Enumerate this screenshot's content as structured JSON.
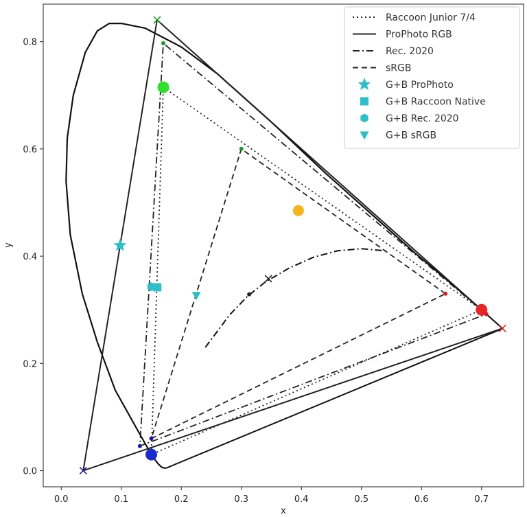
{
  "chart_data": {
    "type": "scatter",
    "xlabel": "x",
    "ylabel": "y",
    "xlim": [
      -0.03,
      0.77
    ],
    "ylim": [
      -0.03,
      0.87
    ],
    "xticks": [
      0.0,
      0.1,
      0.2,
      0.3,
      0.4,
      0.5,
      0.6,
      0.7
    ],
    "yticks": [
      0.0,
      0.2,
      0.4,
      0.6,
      0.8
    ],
    "xtick_labels": [
      "0.0",
      "0.1",
      "0.2",
      "0.3",
      "0.4",
      "0.5",
      "0.6",
      "0.7"
    ],
    "ytick_labels": [
      "0.0",
      "0.2",
      "0.4",
      "0.6",
      "0.8"
    ],
    "grid": false,
    "legend_position": "top-right",
    "spectral_locus": [
      [
        0.175,
        0.005
      ],
      [
        0.172,
        0.005
      ],
      [
        0.168,
        0.006
      ],
      [
        0.162,
        0.012
      ],
      [
        0.153,
        0.025
      ],
      [
        0.14,
        0.05
      ],
      [
        0.12,
        0.09
      ],
      [
        0.09,
        0.15
      ],
      [
        0.06,
        0.24
      ],
      [
        0.035,
        0.33
      ],
      [
        0.015,
        0.44
      ],
      [
        0.008,
        0.54
      ],
      [
        0.01,
        0.62
      ],
      [
        0.02,
        0.7
      ],
      [
        0.04,
        0.78
      ],
      [
        0.06,
        0.82
      ],
      [
        0.08,
        0.834
      ],
      [
        0.1,
        0.834
      ],
      [
        0.14,
        0.825
      ],
      [
        0.2,
        0.79
      ],
      [
        0.26,
        0.74
      ],
      [
        0.35,
        0.65
      ],
      [
        0.44,
        0.555
      ],
      [
        0.52,
        0.475
      ],
      [
        0.59,
        0.405
      ],
      [
        0.64,
        0.358
      ],
      [
        0.69,
        0.31
      ],
      [
        0.735,
        0.265
      ]
    ],
    "locus_closure": [
      [
        0.735,
        0.265
      ],
      [
        0.175,
        0.005
      ]
    ],
    "planckian_locus": [
      [
        0.24,
        0.23
      ],
      [
        0.26,
        0.26
      ],
      [
        0.28,
        0.29
      ],
      [
        0.31,
        0.325
      ],
      [
        0.34,
        0.352
      ],
      [
        0.38,
        0.378
      ],
      [
        0.42,
        0.398
      ],
      [
        0.46,
        0.41
      ],
      [
        0.5,
        0.414
      ],
      [
        0.54,
        0.41
      ]
    ],
    "planckian_markers": [
      {
        "x": 0.345,
        "y": 0.358,
        "marker": "x",
        "color": "#222222"
      },
      {
        "x": 0.313,
        "y": 0.329,
        "marker": "dot",
        "color": "#222222"
      }
    ],
    "series": [
      {
        "name": "Raccoon Junior 7/4",
        "kind": "gamut",
        "style": "dotted",
        "color": "#222222",
        "primaries": [
          [
            0.7,
            0.3
          ],
          [
            0.17,
            0.715
          ],
          [
            0.15,
            0.03
          ]
        ],
        "markers": [
          {
            "x": 0.7,
            "y": 0.3,
            "color": "#e8262a",
            "size": "large"
          },
          {
            "x": 0.17,
            "y": 0.715,
            "color": "#2ee02e",
            "size": "large"
          },
          {
            "x": 0.15,
            "y": 0.03,
            "color": "#1a2acd",
            "size": "large"
          }
        ]
      },
      {
        "name": "ProPhoto RGB",
        "kind": "gamut",
        "style": "solid",
        "color": "#222222",
        "primaries": [
          [
            0.7347,
            0.2653
          ],
          [
            0.1596,
            0.8404
          ],
          [
            0.0366,
            0.0001
          ]
        ],
        "markers": [
          {
            "x": 0.7347,
            "y": 0.2653,
            "color": "#d22020",
            "size": "x"
          },
          {
            "x": 0.1596,
            "y": 0.8404,
            "color": "#1a9a1a",
            "size": "x"
          },
          {
            "x": 0.0366,
            "y": 0.0001,
            "color": "#1a1aa0",
            "size": "x"
          }
        ]
      },
      {
        "name": "Rec. 2020",
        "kind": "gamut",
        "style": "dashdot",
        "color": "#222222",
        "primaries": [
          [
            0.708,
            0.292
          ],
          [
            0.17,
            0.797
          ],
          [
            0.131,
            0.046
          ]
        ],
        "markers": [
          {
            "x": 0.708,
            "y": 0.292,
            "color": "#d22020",
            "size": "small"
          },
          {
            "x": 0.17,
            "y": 0.797,
            "color": "#1a9a1a",
            "size": "small"
          },
          {
            "x": 0.131,
            "y": 0.046,
            "color": "#1a1aa0",
            "size": "small"
          }
        ]
      },
      {
        "name": "sRGB",
        "kind": "gamut",
        "style": "dashed",
        "color": "#222222",
        "primaries": [
          [
            0.64,
            0.33
          ],
          [
            0.3,
            0.6
          ],
          [
            0.15,
            0.06
          ]
        ],
        "markers": [
          {
            "x": 0.64,
            "y": 0.33,
            "color": "#d22020",
            "size": "small"
          },
          {
            "x": 0.3,
            "y": 0.6,
            "color": "#1a9a1a",
            "size": "small"
          },
          {
            "x": 0.15,
            "y": 0.06,
            "color": "#1a1aa0",
            "size": "small"
          }
        ]
      },
      {
        "name": "G+B ProPhoto",
        "kind": "point",
        "marker": "star",
        "color": "#2bbfc8",
        "x": 0.098,
        "y": 0.42
      },
      {
        "name": "G+B Raccoon Native",
        "kind": "point",
        "marker": "square",
        "color": "#2bbfc8",
        "x": 0.16,
        "y": 0.342
      },
      {
        "name": "G+B Rec. 2020",
        "kind": "point",
        "marker": "hexagon",
        "color": "#2bbfc8",
        "x": 0.15,
        "y": 0.343
      },
      {
        "name": "G+B sRGB",
        "kind": "point",
        "marker": "triangle_down",
        "color": "#2bbfc8",
        "x": 0.225,
        "y": 0.327
      }
    ],
    "extra_points": [
      {
        "x": 0.395,
        "y": 0.485,
        "color": "#f5b41a",
        "marker": "circle"
      }
    ]
  }
}
